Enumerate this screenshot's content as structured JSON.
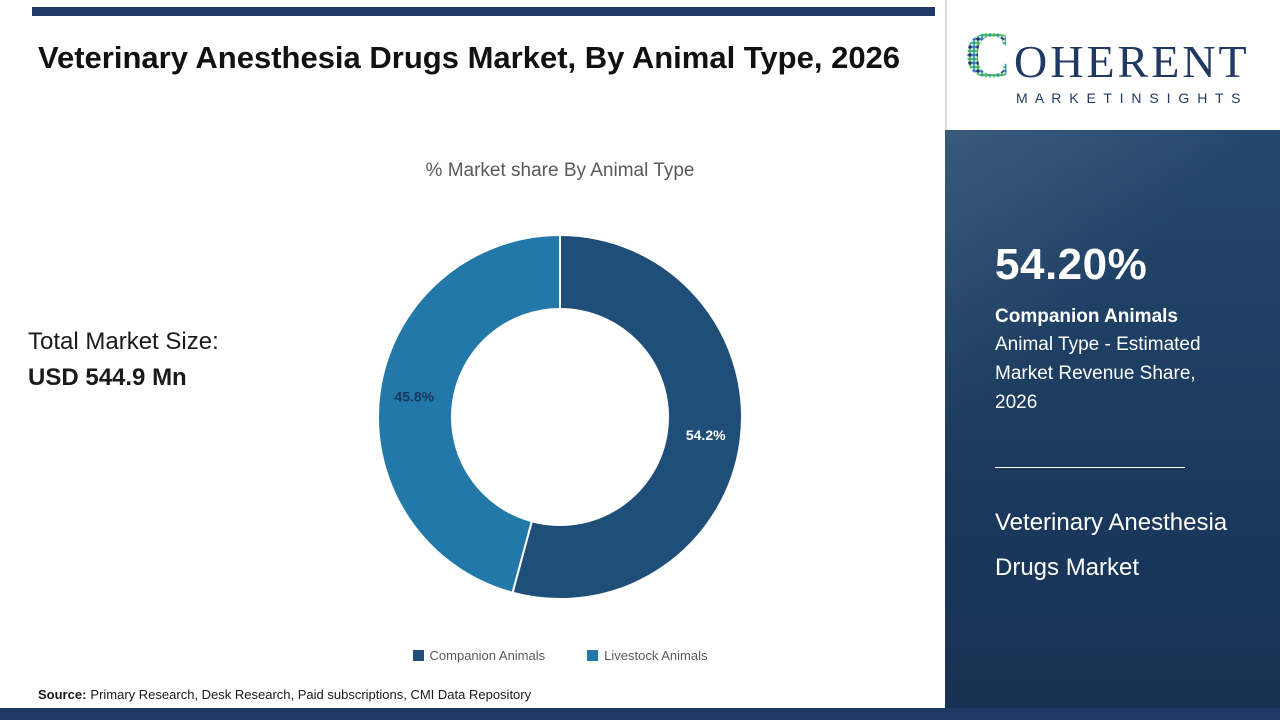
{
  "header": {
    "title": "Veterinary Anesthesia Drugs Market, By Animal Type, 2026"
  },
  "logo": {
    "c": "C",
    "rest": "OHERENT",
    "sub": "M A R K E T   I N S I G H T S"
  },
  "chart_data": {
    "type": "pie",
    "donut": true,
    "title": "% Market share By Animal Type",
    "start_angle_deg": 0,
    "legend_position": "bottom",
    "series": [
      {
        "name": "Companion Animals",
        "value": 54.2,
        "label": "54.2%",
        "color": "#1f4e79",
        "label_color": "#ffffff"
      },
      {
        "name": "Livestock Animals",
        "value": 45.8,
        "label": "45.8%",
        "color": "#2279a9",
        "label_color": "#17365d"
      }
    ]
  },
  "stats": {
    "total_label": "Total Market Size:",
    "total_value": "USD 544.9 Mn"
  },
  "sidebar": {
    "highlight_value": "54.20%",
    "highlight_name": "Companion Animals",
    "highlight_desc": "Animal Type - Estimated Market Revenue Share, 2026",
    "market_name": "Veterinary Anesthesia Drugs Market"
  },
  "footer": {
    "source_label": "Source:",
    "source_text": "Primary Research, Desk Research, Paid subscriptions, CMI Data Repository"
  },
  "colors": {
    "navy": "#1f3864",
    "slice1": "#1f4e79",
    "slice2": "#2279a9"
  }
}
